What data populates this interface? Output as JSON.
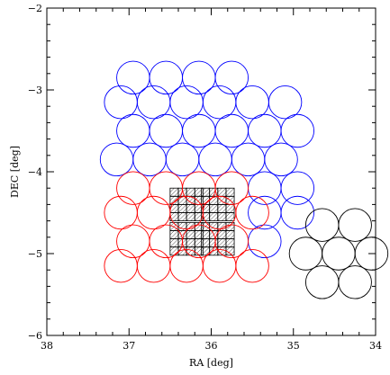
{
  "chart_data": {
    "type": "scatter",
    "title": "",
    "xlabel": "RA [deg]",
    "ylabel": "DEC [deg]",
    "xlim": [
      38,
      34
    ],
    "ylim": [
      -6,
      -2
    ],
    "x_ticks": [
      38,
      37,
      36,
      35,
      34
    ],
    "x_tick_labels": [
      "38",
      "37",
      "36",
      "35",
      "34"
    ],
    "y_ticks": [
      -6,
      -5,
      -4,
      -3,
      -2
    ],
    "y_tick_labels": [
      "−6",
      "−5",
      "−4",
      "−3",
      "−2"
    ],
    "marker": "circle",
    "circle_radius_deg": 0.2,
    "series": [
      {
        "color": "#0000ff",
        "points": [
          [
            36.95,
            -2.85
          ],
          [
            36.55,
            -2.85
          ],
          [
            36.15,
            -2.85
          ],
          [
            35.75,
            -2.85
          ],
          [
            37.1,
            -3.15
          ],
          [
            36.7,
            -3.15
          ],
          [
            36.3,
            -3.15
          ],
          [
            35.9,
            -3.15
          ],
          [
            35.5,
            -3.15
          ],
          [
            35.1,
            -3.15
          ],
          [
            36.95,
            -3.5
          ],
          [
            36.55,
            -3.5
          ],
          [
            36.15,
            -3.5
          ],
          [
            35.75,
            -3.5
          ],
          [
            35.35,
            -3.5
          ],
          [
            34.95,
            -3.5
          ],
          [
            37.15,
            -3.85
          ],
          [
            36.75,
            -3.85
          ],
          [
            36.35,
            -3.85
          ],
          [
            35.95,
            -3.85
          ],
          [
            35.55,
            -3.85
          ],
          [
            35.15,
            -3.85
          ],
          [
            35.35,
            -4.2
          ],
          [
            34.95,
            -4.2
          ],
          [
            35.35,
            -4.5
          ],
          [
            34.95,
            -4.5
          ],
          [
            35.35,
            -4.85
          ]
        ]
      },
      {
        "color": "#ff0000",
        "points": [
          [
            36.95,
            -4.2
          ],
          [
            36.55,
            -4.2
          ],
          [
            36.15,
            -4.2
          ],
          [
            35.75,
            -4.2
          ],
          [
            37.1,
            -4.5
          ],
          [
            36.7,
            -4.5
          ],
          [
            36.3,
            -4.5
          ],
          [
            35.9,
            -4.5
          ],
          [
            35.5,
            -4.5
          ],
          [
            36.95,
            -4.85
          ],
          [
            36.55,
            -4.85
          ],
          [
            36.15,
            -4.85
          ],
          [
            35.75,
            -4.85
          ],
          [
            37.1,
            -5.15
          ],
          [
            36.7,
            -5.15
          ],
          [
            36.3,
            -5.15
          ],
          [
            35.9,
            -5.15
          ],
          [
            35.5,
            -5.15
          ]
        ]
      },
      {
        "color": "#000000",
        "points": [
          [
            34.65,
            -4.65
          ],
          [
            34.25,
            -4.65
          ],
          [
            34.85,
            -5.0
          ],
          [
            34.45,
            -5.0
          ],
          [
            34.05,
            -5.0
          ],
          [
            34.65,
            -5.35
          ],
          [
            34.25,
            -5.35
          ]
        ]
      }
    ],
    "ccd_blocks": [
      {
        "ra_min": 36.1,
        "ra_max": 36.5,
        "dec_min": -4.6,
        "dec_max": -4.2
      },
      {
        "ra_min": 35.72,
        "ra_max": 36.12,
        "dec_min": -4.6,
        "dec_max": -4.2
      },
      {
        "ra_min": 36.1,
        "ra_max": 36.5,
        "dec_min": -5.02,
        "dec_max": -4.62
      },
      {
        "ra_min": 35.72,
        "ra_max": 36.12,
        "dec_min": -5.02,
        "dec_max": -4.62
      }
    ],
    "ccd_grid": {
      "cols": 4,
      "rows": 4
    },
    "grid": false,
    "legend": "none"
  }
}
